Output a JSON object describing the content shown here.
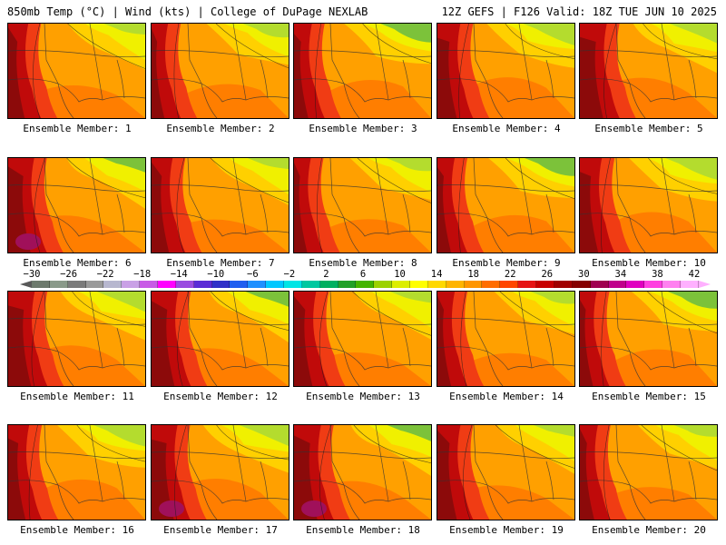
{
  "header": {
    "left": "850mb Temp (°C) | Wind (kts) | College of DuPage NEXLAB",
    "right": "12Z GEFS | F126 Valid: 18Z TUE JUN 10 2025"
  },
  "colorbar": {
    "labels": [
      "−30",
      "−26",
      "−22",
      "−18",
      "−14",
      "−10",
      "−6",
      "−2",
      "2",
      "6",
      "10",
      "14",
      "18",
      "22",
      "26",
      "30",
      "34",
      "38",
      "42"
    ],
    "colors": [
      "#6d7a6d",
      "#8a9a8a",
      "#7b7b7b",
      "#9a9a9a",
      "#b7b7cf",
      "#c9a0e6",
      "#c85ae6",
      "#ff00ff",
      "#9a4be0",
      "#5b2bd6",
      "#3030c8",
      "#1f5ef0",
      "#1e90ff",
      "#00c8ff",
      "#00e5e5",
      "#00c8a0",
      "#00b060",
      "#22a028",
      "#44b400",
      "#9cd200",
      "#dcee00",
      "#ffff00",
      "#ffd800",
      "#ffb400",
      "#ff9600",
      "#ff6e00",
      "#ff4600",
      "#e61414",
      "#c80000",
      "#a00000",
      "#860000",
      "#a00050",
      "#c0008c",
      "#e000c0",
      "#ff40e0",
      "#ff80f0",
      "#ffb0ff"
    ]
  },
  "panels": [
    {
      "label": "Ensemble Member: 1",
      "variant": 1
    },
    {
      "label": "Ensemble Member: 2",
      "variant": 2
    },
    {
      "label": "Ensemble Member: 3",
      "variant": 3
    },
    {
      "label": "Ensemble Member: 4",
      "variant": 4
    },
    {
      "label": "Ensemble Member: 5",
      "variant": 5
    },
    {
      "label": "Ensemble Member: 6",
      "variant": 6
    },
    {
      "label": "Ensemble Member: 7",
      "variant": 7
    },
    {
      "label": "Ensemble Member: 8",
      "variant": 8
    },
    {
      "label": "Ensemble Member: 9",
      "variant": 9
    },
    {
      "label": "Ensemble Member: 10",
      "variant": 10
    },
    {
      "label": "Ensemble Member: 11",
      "variant": 11
    },
    {
      "label": "Ensemble Member: 12",
      "variant": 12
    },
    {
      "label": "Ensemble Member: 13",
      "variant": 13
    },
    {
      "label": "Ensemble Member: 14",
      "variant": 14
    },
    {
      "label": "Ensemble Member: 15",
      "variant": 15
    },
    {
      "label": "Ensemble Member: 16",
      "variant": 16
    },
    {
      "label": "Ensemble Member: 17",
      "variant": 17
    },
    {
      "label": "Ensemble Member: 18",
      "variant": 18
    },
    {
      "label": "Ensemble Member: 19",
      "variant": 19
    },
    {
      "label": "Ensemble Member: 20",
      "variant": 20
    }
  ],
  "palette": {
    "green": "#7cc23a",
    "lightgreen": "#b4dc2e",
    "yellow": "#f0f000",
    "gold": "#ffd000",
    "orange": "#ffa000",
    "darkorange": "#ff7800",
    "red": "#f03c14",
    "darkred": "#c00a0a",
    "maroon": "#8c0a0a",
    "magenta": "#a0105a"
  }
}
